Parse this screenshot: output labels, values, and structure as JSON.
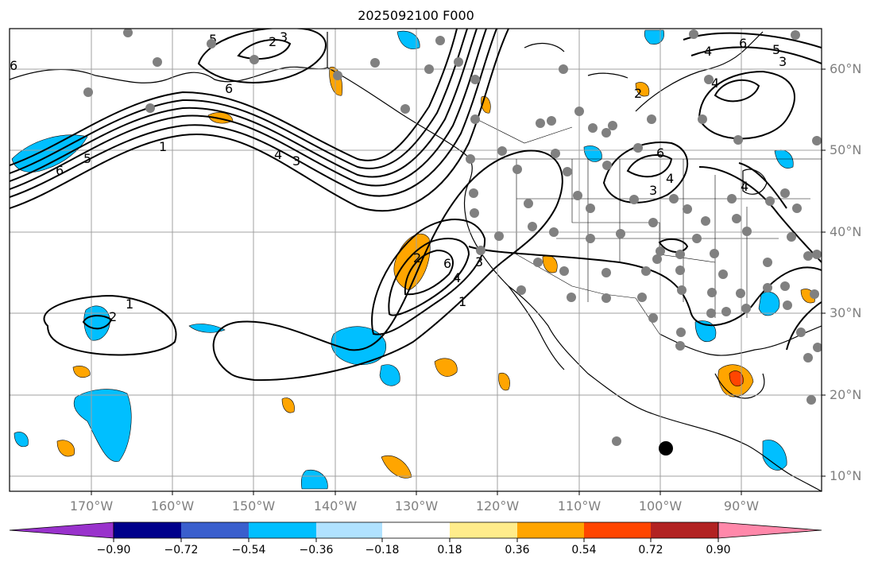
{
  "title": "2025092100 F000",
  "lat_labels": [
    "60°N",
    "50°N",
    "40°N",
    "30°N",
    "20°N",
    "10°N"
  ],
  "lon_labels": [
    "170°W",
    "160°W",
    "150°W",
    "140°W",
    "130°W",
    "120°W",
    "110°W",
    "100°W",
    "90°W"
  ],
  "colorbar": {
    "tick_labels": [
      "−0.90",
      "−0.72",
      "−0.54",
      "−0.36",
      "−0.18",
      "0.18",
      "0.36",
      "0.54",
      "0.72",
      "0.90"
    ],
    "colors": [
      "#9932cc",
      "#00008b",
      "#3a5fcd",
      "#00bfff",
      "#b0e2ff",
      "#ffffff",
      "#ffec8b",
      "#ffa500",
      "#ff4500",
      "#b22222",
      "#ff88aa"
    ]
  },
  "contour_labels": [
    "1",
    "2",
    "3",
    "4",
    "5",
    "6"
  ],
  "colors": {
    "land_outline": "#000000",
    "grid": "#a0a0a0",
    "station": "#808080",
    "contour": "#000000"
  }
}
